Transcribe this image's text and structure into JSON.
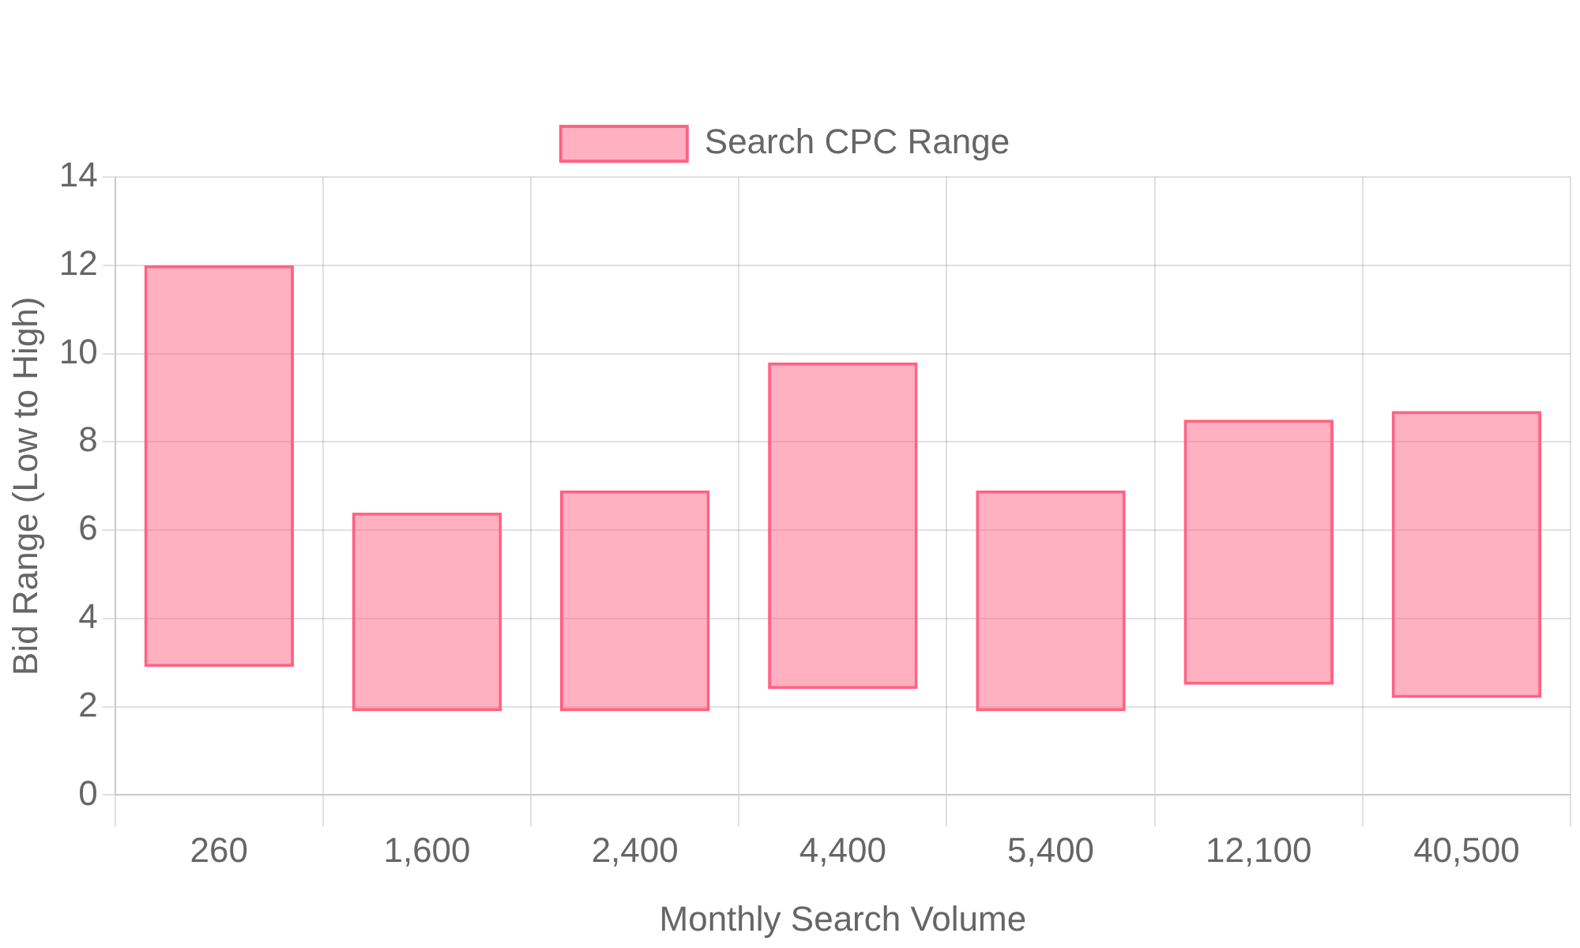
{
  "chart_data": {
    "type": "bar",
    "xlabel": "Monthly Search Volume",
    "ylabel": "Bid Range (Low to High)",
    "categories": [
      "260",
      "1,600",
      "2,400",
      "4,400",
      "5,400",
      "12,100",
      "40,500"
    ],
    "series": [
      {
        "name": "Search CPC Range",
        "color": "#ff6384",
        "values": [
          9.1,
          4.5,
          5.0,
          7.4,
          5.0,
          6.0,
          6.5
        ],
        "base": [
          2.9,
          1.9,
          1.9,
          2.4,
          1.9,
          2.5,
          2.2
        ]
      }
    ],
    "ylim": [
      0,
      14
    ],
    "yticks": [
      0,
      2,
      4,
      6,
      8,
      10,
      12,
      14
    ],
    "grid": true,
    "legend": "top"
  }
}
